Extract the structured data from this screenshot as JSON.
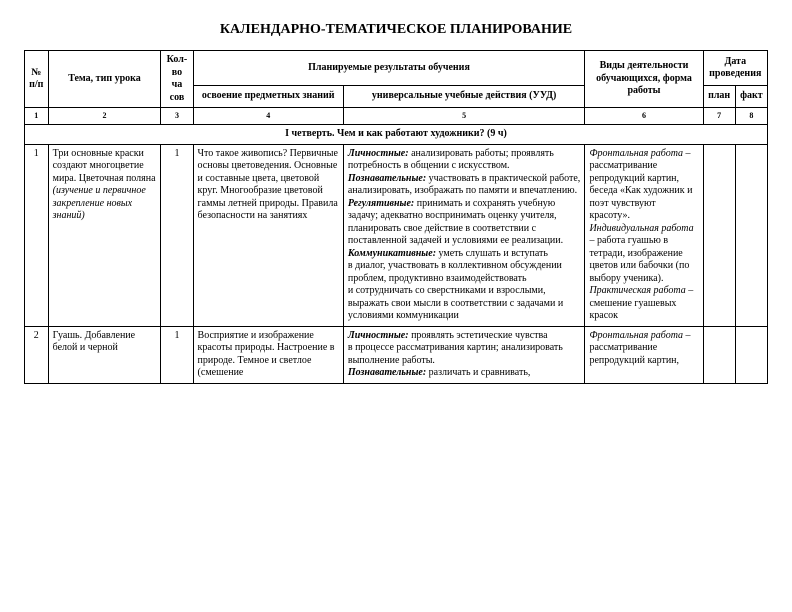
{
  "title": "КАЛЕНДАРНО-ТЕМАТИЧЕСКОЕ ПЛАНИРОВАНИЕ",
  "head": {
    "c1": "№ п/п",
    "c2": "Тема, тип урока",
    "c3": "Кол-во ча сов",
    "c45": "Планируемые результаты обучения",
    "c4": "освоение предметных знаний",
    "c5": "универсальные учебные действия (УУД)",
    "c6": "Виды деятельности обучающихся, форма работы",
    "c78": "Дата проведения",
    "c7": "план",
    "c8": "факт"
  },
  "nums": {
    "n1": "1",
    "n2": "2",
    "n3": "3",
    "n4": "4",
    "n5": "5",
    "n6": "6",
    "n7": "7",
    "n8": "8"
  },
  "section": "I четверть. Чем и как работают художники? (9 ч)",
  "r1": {
    "num": "1",
    "tema_a": "Три основные краски создают многоцветие мира. Цветочная поляна",
    "tema_b": "(изучение и первичное закрепление новых знаний)",
    "kol": "1",
    "osv": "Что такое живопись? Первичные основы цветоведения. Основные и составные цвета, цветовой круг. Многообразие цветовой гаммы летней природы. Правила безопасности на занятиях",
    "uud": {
      "lich_h": "Личностные:",
      "lich_t": " анализировать работы; проявлять потребность в общении с искусством.",
      "poz_h": "Познавательные:",
      "poz_t": " участвовать в практической работе, анализировать, изображать по памяти и впечатлению.",
      "reg_h": "Регулятивные:",
      "reg_t": " принимать и сохранять учебную задачу; адекватно воспринимать оценку учителя, планировать свое действие в соответствии с поставленной задачей и условиями ее реализации.",
      "kom_h": "Коммуникативные:",
      "kom_t1": " уметь слушать и вступать",
      "kom_t2": "в диалог, участвовать в коллективном обсуждении проблем, продуктивно взаимодействовать",
      "kom_t3": "и сотрудничать со сверстниками и взрослыми, выражать свои мысли в соответствии с задачами и условиями коммуникации"
    },
    "vid": {
      "p1_h": "Фронтальная работа",
      "p1_t": " – рассматривание репродукций картин, беседа «Как художник и поэт чувствуют красоту».",
      "p2_h": "Индивидуальная работа",
      "p2_t": " – работа гуашью в тетради, изображение цветов или бабочки (по выбору ученика).",
      "p3_h": "Практическая работа",
      "p3_t": " – смешение гуашевых красок"
    }
  },
  "r2": {
    "num": "2",
    "tema": "Гуашь. Добавление белой и черной",
    "kol": "1",
    "osv": "Восприятие и изображение красоты природы. Настроение в природе. Темное и светлое (смешение",
    "uud": {
      "lich_h": "Личностные:",
      "lich_t1": " проявлять эстетические чувства",
      "lich_t2": "в процессе рассматривания картин; анализировать выполнение работы.",
      "poz_h": "Познавательные:",
      "poz_t": "  различать и сравнивать,"
    },
    "vid": {
      "p1_h": "Фронтальная работа",
      "p1_t": " – рассматривание репродукций картин,"
    }
  }
}
